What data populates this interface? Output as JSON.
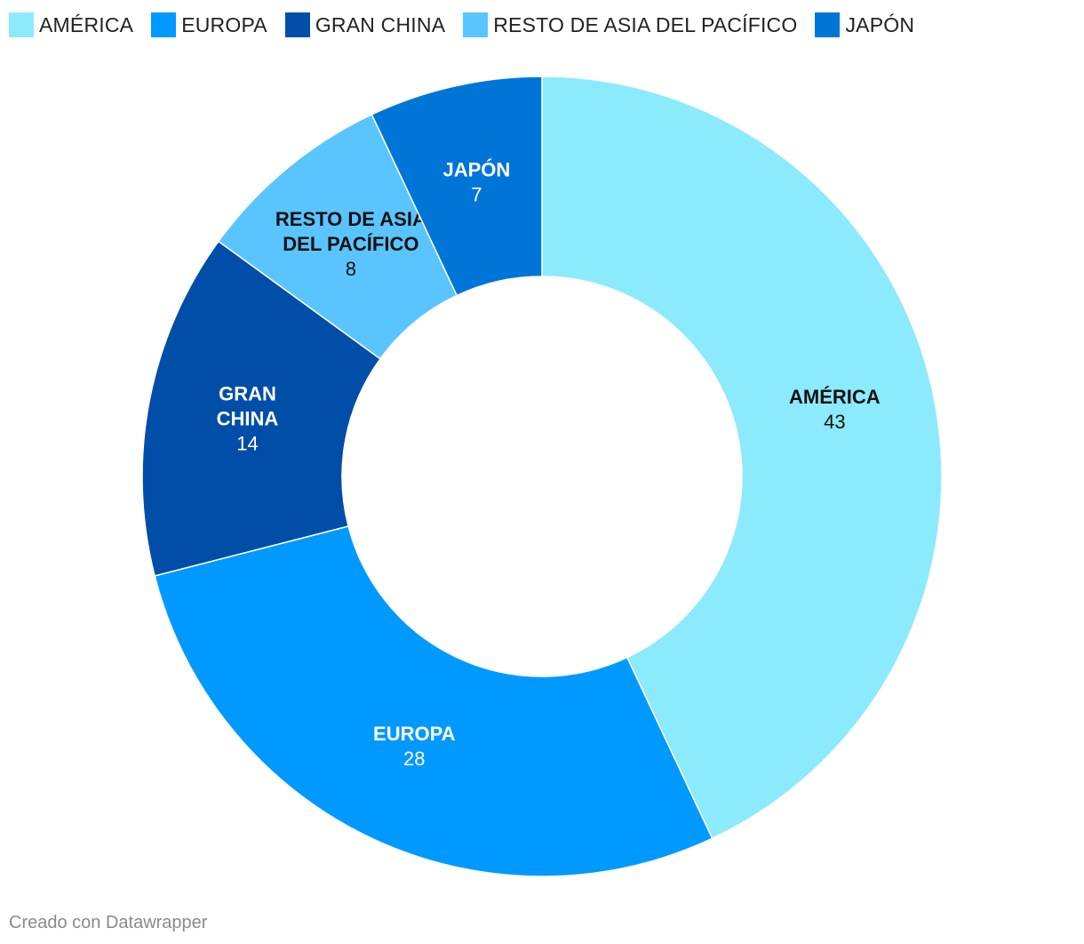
{
  "chart_data": {
    "type": "pie",
    "donut": true,
    "legend_position": "top-left",
    "slices": [
      {
        "name": "AMÉRICA",
        "label_lines": [
          "AMÉRICA"
        ],
        "value": 43,
        "color": "#8ceafd",
        "text_color": "#111111"
      },
      {
        "name": "EUROPA",
        "label_lines": [
          "EUROPA"
        ],
        "value": 28,
        "color": "#0099ff",
        "text_color": "#ffffff"
      },
      {
        "name": "GRAN CHINA",
        "label_lines": [
          "GRAN",
          "CHINA"
        ],
        "value": 14,
        "color": "#004ea8",
        "text_color": "#ffffff"
      },
      {
        "name": "RESTO DE ASIA DEL PACÍFICO",
        "label_lines": [
          "RESTO DE ASIA",
          "DEL PACÍFICO"
        ],
        "value": 8,
        "color": "#5ac4ff",
        "text_color": "#111111"
      },
      {
        "name": "JAPÓN",
        "label_lines": [
          "JAPÓN"
        ],
        "value": 7,
        "color": "#0075d8",
        "text_color": "#ffffff"
      }
    ]
  },
  "legend": [
    {
      "label": "AMÉRICA",
      "color": "#8ceafd"
    },
    {
      "label": "EUROPA",
      "color": "#0099ff"
    },
    {
      "label": "GRAN CHINA",
      "color": "#004ea8"
    },
    {
      "label": "RESTO DE ASIA DEL PACÍFICO",
      "color": "#5ac4ff"
    },
    {
      "label": "JAPÓN",
      "color": "#0075d8"
    }
  ],
  "footer": {
    "credit": "Creado con Datawrapper"
  }
}
